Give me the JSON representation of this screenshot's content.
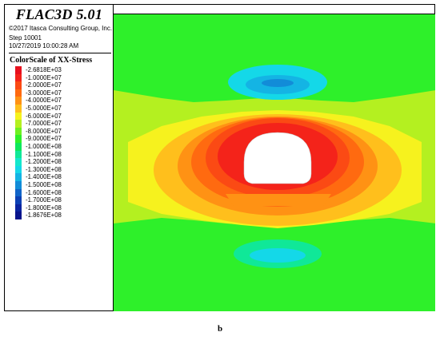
{
  "header": {
    "app_title": "FLAC3D 5.01",
    "copyright": "©2017 Itasca Consulting Group, Inc.",
    "step": "Step 10001",
    "datetime": "10/27/2019 10:00:28 AM"
  },
  "legend": {
    "title": "ColorScale of XX-Stress",
    "items": [
      {
        "label": "-2.6818E+03",
        "color": "#e8101e"
      },
      {
        "label": "-1.0000E+07",
        "color": "#f4231a"
      },
      {
        "label": "-2.0000E+07",
        "color": "#fb4a14"
      },
      {
        "label": "-3.0000E+07",
        "color": "#ff6a10"
      },
      {
        "label": "-4.0000E+07",
        "color": "#ff9214"
      },
      {
        "label": "-5.0000E+07",
        "color": "#ffbf1c"
      },
      {
        "label": "-6.0000E+07",
        "color": "#f6f21e"
      },
      {
        "label": "-7.0000E+07",
        "color": "#b4f020"
      },
      {
        "label": "-8.0000E+07",
        "color": "#6ef022"
      },
      {
        "label": "-9.0000E+07",
        "color": "#2ef02a"
      },
      {
        "label": "-1.0000E+08",
        "color": "#0ee85c"
      },
      {
        "label": "-1.1000E+08",
        "color": "#10e898"
      },
      {
        "label": "-1.2000E+08",
        "color": "#14e8cc"
      },
      {
        "label": "-1.3000E+08",
        "color": "#14d8e8"
      },
      {
        "label": "-1.4000E+08",
        "color": "#14b4e4"
      },
      {
        "label": "-1.5000E+08",
        "color": "#128cd8"
      },
      {
        "label": "-1.6000E+08",
        "color": "#1064c8"
      },
      {
        "label": "-1.7000E+08",
        "color": "#0c40b4"
      },
      {
        "label": "-1.8000E+08",
        "color": "#0a24a0"
      },
      {
        "label": "-1.8676E+08",
        "color": "#08148c"
      }
    ]
  },
  "caption": "b"
}
